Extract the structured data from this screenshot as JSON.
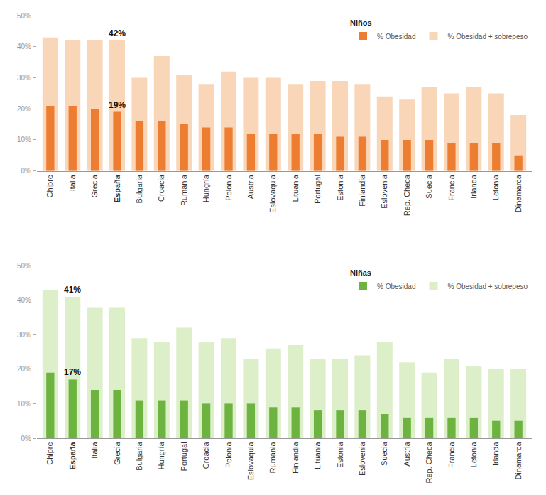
{
  "chart_data": [
    {
      "type": "bar",
      "title": "Niños",
      "legend": "top right",
      "grid": false,
      "stacked": false,
      "categories": [
        "Chipre",
        "Italia",
        "Grecia",
        "España",
        "Bulgaria",
        "Croacia",
        "Rumania",
        "Hungría",
        "Polonia",
        "Austria",
        "Eslovaquia",
        "Lituania",
        "Portugal",
        "Estonia",
        "Finlandia",
        "Eslovenia",
        "Rep. Checa",
        "Suecia",
        "Francia",
        "Irlanda",
        "Letonia",
        "Dinamarca"
      ],
      "series": [
        {
          "name": "% Obesidad + sobrepeso",
          "color": "#f9d6b8",
          "values": [
            43,
            42,
            42,
            42,
            30,
            37,
            31,
            28,
            32,
            30,
            30,
            28,
            29,
            29,
            28,
            24,
            23,
            27,
            25,
            27,
            25,
            18
          ]
        },
        {
          "name": "% Obesidad",
          "color": "#ed7d31",
          "values": [
            21,
            21,
            20,
            19,
            16,
            16,
            15,
            14,
            14,
            12,
            12,
            12,
            12,
            11,
            11,
            10,
            10,
            10,
            9,
            9,
            9,
            5
          ]
        }
      ],
      "annotations": [
        {
          "category": "España",
          "value": 42,
          "text": "42%"
        },
        {
          "category": "España",
          "value": 19,
          "text": "19%"
        }
      ],
      "ylim": [
        0,
        50
      ],
      "yticks": [
        {
          "value": 0,
          "label": "0%"
        },
        {
          "value": 10,
          "label": "10%"
        },
        {
          "value": 20,
          "label": "20%"
        },
        {
          "value": 30,
          "label": "30%"
        },
        {
          "value": 40,
          "label": "40%"
        },
        {
          "value": 50,
          "label": "50%"
        }
      ]
    },
    {
      "type": "bar",
      "title": "Niñas",
      "legend": "top right",
      "grid": false,
      "stacked": false,
      "categories": [
        "Chipre",
        "España",
        "Italia",
        "Grecia",
        "Bulgaria",
        "Hungría",
        "Portugal",
        "Croacia",
        "Polonia",
        "Eslovaquia",
        "Rumania",
        "Finlandia",
        "Lituania",
        "Estonia",
        "Eslovenia",
        "Suecia",
        "Austria",
        "Rep. Checa",
        "Francia",
        "Letonia",
        "Irlanda",
        "Dinamarca"
      ],
      "series": [
        {
          "name": "% Obesidad + sobrepeso",
          "color": "#dcefc9",
          "values": [
            43,
            41,
            38,
            38,
            29,
            28,
            32,
            28,
            29,
            23,
            26,
            27,
            23,
            23,
            24,
            28,
            22,
            19,
            23,
            21,
            20,
            20
          ]
        },
        {
          "name": "% Obesidad",
          "color": "#6cb33f",
          "values": [
            19,
            17,
            14,
            14,
            11,
            11,
            11,
            10,
            10,
            10,
            9,
            9,
            8,
            8,
            8,
            7,
            6,
            6,
            6,
            6,
            5,
            5
          ]
        }
      ],
      "annotations": [
        {
          "category": "España",
          "value": 41,
          "text": "41%"
        },
        {
          "category": "España",
          "value": 17,
          "text": "17%"
        }
      ],
      "ylim": [
        0,
        50
      ],
      "yticks": [
        {
          "value": 0,
          "label": "0%"
        },
        {
          "value": 10,
          "label": "10%"
        },
        {
          "value": 20,
          "label": "20%"
        },
        {
          "value": 30,
          "label": "30%"
        },
        {
          "value": 40,
          "label": "40%"
        },
        {
          "value": 50,
          "label": "50%"
        }
      ]
    }
  ]
}
